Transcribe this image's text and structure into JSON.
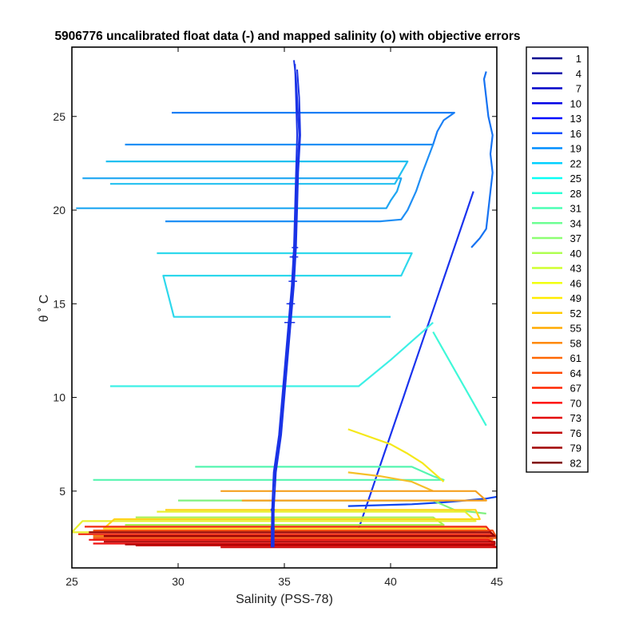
{
  "chart_data": {
    "type": "line",
    "title": "5906776 uncalibrated float data (-) and mapped salinity (o) with objective errors",
    "xlabel": "Salinity (PSS-78)",
    "ylabel": "θ ˚ C",
    "xlim": [
      25,
      45
    ],
    "ylim": [
      0.9,
      28.7
    ],
    "xticks": [
      "25",
      "30",
      "35",
      "40",
      "45"
    ],
    "yticks": [
      "5",
      "10",
      "15",
      "20",
      "25"
    ],
    "grid": false,
    "legend_position": "outside-right",
    "colorscale": [
      "#00008f",
      "#0000ff",
      "#00ffff",
      "#80ff80",
      "#ffff00",
      "#ff8000",
      "#ff0000",
      "#800000"
    ],
    "legend": [
      "1",
      "4",
      "7",
      "10",
      "13",
      "16",
      "19",
      "22",
      "25",
      "28",
      "31",
      "34",
      "37",
      "40",
      "43",
      "46",
      "49",
      "52",
      "55",
      "58",
      "61",
      "64",
      "67",
      "70",
      "73",
      "76",
      "79",
      "82"
    ],
    "mapped_salinity": {
      "color": "#1a33e6",
      "series": [
        {
          "theta": [
            2.0,
            3.0,
            4.0,
            5.0,
            6.0,
            8.0,
            10.0,
            12.0,
            14.0,
            16.0,
            18.0,
            20.0,
            22.0,
            24.0,
            25.0,
            26.0,
            27.0,
            28.0
          ],
          "salinity": [
            34.45,
            34.45,
            34.45,
            34.47,
            34.55,
            34.8,
            34.95,
            35.1,
            35.25,
            35.4,
            35.5,
            35.55,
            35.6,
            35.7,
            35.65,
            35.6,
            35.55,
            35.45
          ]
        },
        {
          "theta": [
            2.0,
            4.0,
            6.0,
            8.0,
            10.0,
            12.0,
            14.0,
            16.0,
            18.0,
            20.0,
            22.0,
            24.0,
            26.0,
            27.5
          ],
          "salinity": [
            34.5,
            34.5,
            34.6,
            34.85,
            35.0,
            35.15,
            35.3,
            35.45,
            35.55,
            35.6,
            35.65,
            35.75,
            35.7,
            35.6
          ]
        },
        {
          "theta": [
            2.0,
            4.0,
            6.0,
            8.0,
            10.0,
            12.0,
            14.0,
            16.0,
            18.0,
            20.0,
            22.0,
            24.0,
            26.0,
            27.8
          ],
          "salinity": [
            34.4,
            34.42,
            34.5,
            34.75,
            34.9,
            35.05,
            35.2,
            35.35,
            35.45,
            35.5,
            35.55,
            35.6,
            35.55,
            35.5
          ]
        }
      ],
      "error_bars": [
        {
          "theta": 14.0,
          "salinity": 35.25,
          "err": 0.25
        },
        {
          "theta": 15.0,
          "salinity": 35.3,
          "err": 0.2
        },
        {
          "theta": 16.2,
          "salinity": 35.4,
          "err": 0.2
        },
        {
          "theta": 17.5,
          "salinity": 35.45,
          "err": 0.2
        },
        {
          "theta": 18.0,
          "salinity": 35.5,
          "err": 0.15
        },
        {
          "theta": 3.0,
          "salinity": 34.45,
          "err": 0.1
        },
        {
          "theta": 4.0,
          "salinity": 34.45,
          "err": 0.1
        }
      ]
    },
    "series": [
      {
        "name": "1",
        "color": "#1a33ee",
        "theta": [
          3.0,
          4.0,
          5.0,
          6.0,
          7.0,
          8.0,
          9.0,
          10.0,
          11.0,
          12.0,
          13.0,
          14.0,
          15.0,
          16.0,
          17.0,
          18.0,
          19.0,
          20.0,
          21.0
        ],
        "salinity": [
          38.5,
          38.8,
          39.1,
          39.4,
          39.7,
          40.0,
          40.3,
          40.6,
          40.9,
          41.2,
          41.5,
          41.8,
          42.1,
          42.4,
          42.7,
          43.0,
          43.3,
          43.6,
          43.9
        ]
      },
      {
        "name": "10",
        "color": "#0d44f0",
        "theta": [
          4.2,
          4.3,
          4.4,
          4.5,
          4.6,
          4.7
        ],
        "salinity": [
          38.0,
          41.0,
          42.5,
          43.5,
          44.5,
          45.0
        ]
      },
      {
        "name": "16",
        "color": "#1572f2",
        "theta": [
          18.0,
          18.5,
          19.0,
          20.0,
          21.0,
          22.0,
          23.0,
          24.0,
          25.0,
          26.0,
          27.0,
          27.4
        ],
        "salinity": [
          43.8,
          44.2,
          44.5,
          44.6,
          44.7,
          44.8,
          44.7,
          44.8,
          44.6,
          44.5,
          44.4,
          44.5
        ]
      },
      {
        "name": "19",
        "color": "#1a7ff5",
        "theta": [
          25.2,
          25.2,
          24.8,
          24.2,
          23.5
        ],
        "salinity": [
          29.7,
          43.0,
          42.5,
          42.2,
          42.0
        ]
      },
      {
        "name": "22",
        "color": "#1f8ff5",
        "theta": [
          23.5,
          23.5,
          22.0,
          21.0,
          20.0,
          19.5,
          19.4,
          19.4
        ],
        "salinity": [
          27.5,
          42.0,
          41.5,
          41.2,
          40.8,
          40.5,
          39.5,
          29.4
        ]
      },
      {
        "name": "25",
        "color": "#1ea6f2",
        "theta": [
          21.7,
          21.7,
          21.0,
          20.5,
          20.1,
          20.1
        ],
        "salinity": [
          25.5,
          40.5,
          40.3,
          40.0,
          39.8,
          25.2
        ]
      },
      {
        "name": "28",
        "color": "#22c0f0",
        "theta": [
          22.6,
          22.6,
          22.0,
          21.4,
          21.4
        ],
        "salinity": [
          26.6,
          40.8,
          40.5,
          40.2,
          26.8
        ]
      },
      {
        "name": "31",
        "color": "#2ed8ec",
        "theta": [
          17.7,
          17.7,
          16.5,
          16.5,
          14.3,
          14.3
        ],
        "salinity": [
          29.0,
          41.0,
          40.5,
          29.3,
          29.8,
          40.0
        ]
      },
      {
        "name": "34",
        "color": "#3df0e6",
        "theta": [
          10.6,
          10.6,
          12.0,
          13.0,
          14.0
        ],
        "salinity": [
          26.8,
          38.5,
          40.0,
          41.0,
          42.0
        ]
      },
      {
        "name": "37",
        "color": "#40f8d8",
        "theta": [
          13.5,
          12.5,
          11.5,
          10.5,
          9.5,
          8.5
        ],
        "salinity": [
          42.0,
          42.5,
          43.0,
          43.5,
          44.0,
          44.5
        ]
      },
      {
        "name": "40",
        "color": "#55f5b0",
        "theta": [
          6.3,
          6.3,
          5.8,
          5.6,
          5.6
        ],
        "salinity": [
          30.8,
          41.0,
          42.0,
          42.5,
          26.0
        ]
      },
      {
        "name": "43",
        "color": "#7ff080",
        "theta": [
          4.5,
          4.5,
          4.0,
          3.8
        ],
        "salinity": [
          30.0,
          42.0,
          43.0,
          44.5
        ]
      },
      {
        "name": "46",
        "color": "#a8f050",
        "theta": [
          3.6,
          3.6,
          3.2,
          3.2
        ],
        "salinity": [
          28.0,
          42.0,
          42.5,
          27.5
        ]
      },
      {
        "name": "49",
        "color": "#e8f030",
        "theta": [
          3.9,
          3.9,
          3.4,
          3.4,
          2.8,
          2.8
        ],
        "salinity": [
          29.0,
          43.5,
          44.0,
          25.5,
          25.0,
          44.0
        ]
      },
      {
        "name": "52",
        "color": "#f5e81a",
        "theta": [
          8.3,
          7.5,
          7.0,
          6.5,
          5.5
        ],
        "salinity": [
          38.0,
          40.0,
          40.8,
          41.5,
          42.5
        ]
      },
      {
        "name": "55",
        "color": "#ffd41a",
        "theta": [
          4.0,
          4.0,
          3.5,
          3.5,
          3.0,
          3.0
        ],
        "salinity": [
          29.4,
          44.0,
          44.2,
          27.0,
          26.5,
          44.5
        ]
      },
      {
        "name": "58",
        "color": "#f5c028",
        "theta": [
          6.0,
          5.8,
          5.5,
          5.0
        ],
        "salinity": [
          38.0,
          39.5,
          41.0,
          42.0
        ]
      },
      {
        "name": "61",
        "color": "#f5a020",
        "theta": [
          5.0,
          5.0,
          4.5,
          4.5
        ],
        "salinity": [
          32.0,
          44.0,
          44.5,
          33.0
        ]
      },
      {
        "name": "64",
        "color": "#f07a10",
        "theta": [
          2.6,
          2.6,
          2.4,
          2.4
        ],
        "salinity": [
          26.0,
          44.5,
          44.8,
          26.0
        ]
      },
      {
        "name": "67",
        "color": "#f25010",
        "theta": [
          2.9,
          2.9,
          2.5,
          2.5
        ],
        "salinity": [
          26.0,
          44.8,
          45.0,
          26.0
        ]
      },
      {
        "name": "70",
        "color": "#f02a10",
        "theta": [
          3.1,
          3.1,
          2.7,
          2.7
        ],
        "salinity": [
          25.6,
          44.5,
          44.8,
          25.3
        ]
      },
      {
        "name": "73",
        "color": "#ee1010",
        "theta": [
          2.4,
          2.4,
          2.2,
          2.2
        ],
        "salinity": [
          25.8,
          44.6,
          44.9,
          26.0
        ]
      },
      {
        "name": "76",
        "color": "#d00808",
        "theta": [
          2.1,
          2.1,
          2.0,
          2.0
        ],
        "salinity": [
          28.0,
          44.8,
          45.0,
          32.0
        ]
      },
      {
        "name": "79",
        "color": "#b00606",
        "theta": [
          2.3,
          2.3,
          2.15,
          2.15
        ],
        "salinity": [
          26.5,
          44.9,
          44.9,
          27.5
        ]
      },
      {
        "name": "82",
        "color": "#9a0000",
        "theta": [
          2.8,
          2.8,
          2.6,
          2.6
        ],
        "salinity": [
          25.8,
          44.7,
          44.9,
          26.5
        ]
      }
    ]
  }
}
